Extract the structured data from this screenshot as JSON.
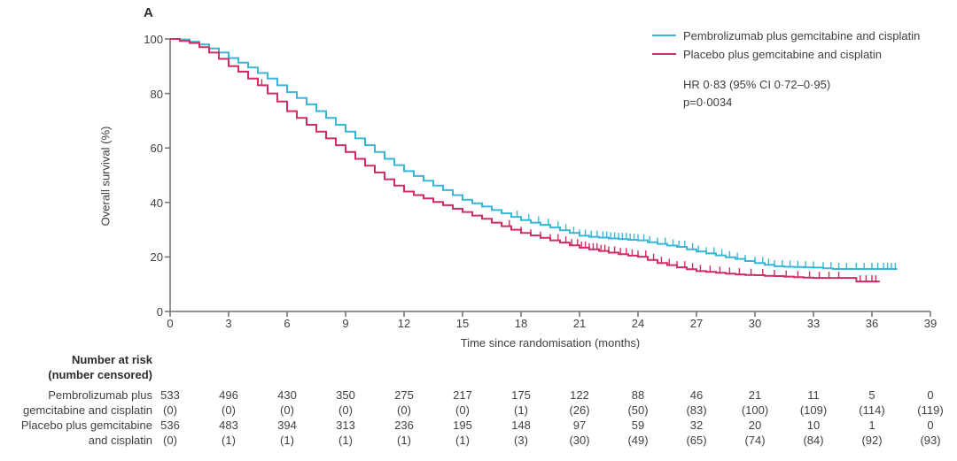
{
  "figure": {
    "panel_label": "A"
  },
  "colors": {
    "axis": "#6e6e6e",
    "text": "#3f3f3f"
  },
  "chart_data": {
    "type": "line",
    "subtype": "kaplan-meier",
    "title": "",
    "xlabel": "Time since randomisation (months)",
    "ylabel": "Overall survival (%)",
    "xlim": [
      0,
      39
    ],
    "ylim": [
      0,
      100
    ],
    "x_ticks": [
      0,
      3,
      6,
      9,
      12,
      15,
      18,
      21,
      24,
      27,
      30,
      33,
      36,
      39
    ],
    "y_ticks": [
      0,
      20,
      40,
      60,
      80,
      100
    ],
    "grid": false,
    "legend_position": "top-right",
    "annotation": {
      "line1": "HR 0·83 (95% CI 0·72–0·95)",
      "line2": "p=0·0034"
    },
    "series": [
      {
        "name": "Pembrolizumab plus gemcitabine and cisplatin",
        "color": "#38b6d8",
        "points": [
          [
            0,
            100
          ],
          [
            0.5,
            99.8
          ],
          [
            1,
            99
          ],
          [
            1.5,
            98
          ],
          [
            2,
            96.5
          ],
          [
            2.5,
            95
          ],
          [
            3,
            93
          ],
          [
            3.5,
            91.3
          ],
          [
            4,
            89.5
          ],
          [
            4.5,
            87.5
          ],
          [
            5,
            85.5
          ],
          [
            5.5,
            83
          ],
          [
            6,
            80.5
          ],
          [
            6.5,
            78.3
          ],
          [
            7,
            76
          ],
          [
            7.5,
            73.5
          ],
          [
            8,
            71
          ],
          [
            8.5,
            68.5
          ],
          [
            9,
            66
          ],
          [
            9.5,
            63.5
          ],
          [
            10,
            61
          ],
          [
            10.5,
            58.5
          ],
          [
            11,
            56
          ],
          [
            11.5,
            53.7
          ],
          [
            12,
            51.5
          ],
          [
            12.5,
            49.7
          ],
          [
            13,
            48
          ],
          [
            13.5,
            46.2
          ],
          [
            14,
            44.5
          ],
          [
            14.5,
            42.7
          ],
          [
            15,
            41
          ],
          [
            15.5,
            39.7
          ],
          [
            16,
            38.5
          ],
          [
            16.5,
            37.2
          ],
          [
            17,
            36
          ],
          [
            17.5,
            34.7
          ],
          [
            18,
            33.5
          ],
          [
            18.5,
            32.6
          ],
          [
            19,
            31.8
          ],
          [
            19.5,
            30.8
          ],
          [
            20,
            29.8
          ],
          [
            20.5,
            28.8
          ],
          [
            21,
            27.8
          ],
          [
            21.5,
            27.4
          ],
          [
            22,
            27.1
          ],
          [
            22.5,
            26.8
          ],
          [
            23,
            26.6
          ],
          [
            23.5,
            26.3
          ],
          [
            24,
            26.1
          ],
          [
            24.5,
            25.4
          ],
          [
            25,
            24.8
          ],
          [
            25.5,
            24.2
          ],
          [
            26,
            23.7
          ],
          [
            26.5,
            22.8
          ],
          [
            27,
            22
          ],
          [
            27.5,
            21.3
          ],
          [
            28,
            20.6
          ],
          [
            28.5,
            19.9
          ],
          [
            29,
            19.3
          ],
          [
            29.5,
            18.5
          ],
          [
            30,
            17.8
          ],
          [
            30.5,
            17.1
          ],
          [
            31,
            16.6
          ],
          [
            31.5,
            16.4
          ],
          [
            32,
            16.3
          ],
          [
            32.5,
            16.2
          ],
          [
            33,
            16.1
          ],
          [
            33.5,
            15.8
          ],
          [
            34,
            15.6
          ],
          [
            35,
            15.6
          ],
          [
            36,
            15.6
          ],
          [
            37.3,
            15.6
          ]
        ],
        "censor_marks_months": [
          17.8,
          18.4,
          18.9,
          19.4,
          19.9,
          20.3,
          20.7,
          21.0,
          21.3,
          21.6,
          21.9,
          22.2,
          22.4,
          22.6,
          22.8,
          23.0,
          23.2,
          23.4,
          23.6,
          23.8,
          24.0,
          24.3,
          24.6,
          25.0,
          25.4,
          25.8,
          26.1,
          26.4,
          26.8,
          27.1,
          27.5,
          27.9,
          28.3,
          28.7,
          29.1,
          29.5,
          30.0,
          30.4,
          30.7,
          31.0,
          31.4,
          31.8,
          32.2,
          32.6,
          33.0,
          33.5,
          33.9,
          34.3,
          34.7,
          35.2,
          35.6,
          36.0,
          36.3,
          36.6,
          36.8,
          37.0,
          37.2
        ]
      },
      {
        "name": "Placebo plus gemcitabine and cisplatin",
        "color": "#d12d5f",
        "points": [
          [
            0,
            100
          ],
          [
            0.5,
            99.3
          ],
          [
            1,
            98.5
          ],
          [
            1.5,
            97
          ],
          [
            2,
            95
          ],
          [
            2.5,
            92.7
          ],
          [
            3,
            90
          ],
          [
            3.5,
            88
          ],
          [
            4,
            85.5
          ],
          [
            4.5,
            83
          ],
          [
            5,
            80
          ],
          [
            5.5,
            77
          ],
          [
            6,
            73.5
          ],
          [
            6.5,
            71
          ],
          [
            7,
            68.5
          ],
          [
            7.5,
            66
          ],
          [
            8,
            63.5
          ],
          [
            8.5,
            61
          ],
          [
            9,
            58.5
          ],
          [
            9.5,
            56
          ],
          [
            10,
            53.5
          ],
          [
            10.5,
            51
          ],
          [
            11,
            48.5
          ],
          [
            11.5,
            46.2
          ],
          [
            12,
            44
          ],
          [
            12.5,
            42.7
          ],
          [
            13,
            41.5
          ],
          [
            13.5,
            40.2
          ],
          [
            14,
            39
          ],
          [
            14.5,
            37.7
          ],
          [
            15,
            36.5
          ],
          [
            15.5,
            35.2
          ],
          [
            16,
            34
          ],
          [
            16.5,
            32.6
          ],
          [
            17,
            31.3
          ],
          [
            17.5,
            30
          ],
          [
            18,
            28.8
          ],
          [
            18.5,
            27.9
          ],
          [
            19,
            27
          ],
          [
            19.5,
            26.1
          ],
          [
            20,
            25.3
          ],
          [
            20.5,
            24.3
          ],
          [
            21,
            23.4
          ],
          [
            21.5,
            22.8
          ],
          [
            22,
            22.2
          ],
          [
            22.5,
            21.6
          ],
          [
            23,
            21
          ],
          [
            23.5,
            20.5
          ],
          [
            24,
            20.1
          ],
          [
            24.5,
            18.9
          ],
          [
            25,
            17.8
          ],
          [
            25.5,
            17
          ],
          [
            26,
            16.2
          ],
          [
            26.5,
            15.5
          ],
          [
            27,
            14.8
          ],
          [
            27.5,
            14.5
          ],
          [
            28,
            14.2
          ],
          [
            28.5,
            13.9
          ],
          [
            29,
            13.6
          ],
          [
            29.5,
            13.4
          ],
          [
            30,
            13.3
          ],
          [
            30.5,
            13.1
          ],
          [
            31,
            13
          ],
          [
            31.5,
            12.8
          ],
          [
            32,
            12.6
          ],
          [
            32.5,
            12.4
          ],
          [
            33,
            12.3
          ],
          [
            34,
            12.3
          ],
          [
            35.1,
            12.3
          ],
          [
            35.2,
            11
          ],
          [
            36.4,
            11
          ]
        ],
        "censor_marks_months": [
          4.7,
          17.4,
          18.0,
          18.5,
          19.0,
          19.5,
          19.9,
          20.3,
          20.6,
          20.9,
          21.1,
          21.3,
          21.5,
          21.7,
          21.9,
          22.1,
          22.3,
          22.5,
          22.8,
          23.1,
          23.4,
          23.7,
          24.0,
          24.4,
          24.8,
          25.2,
          25.6,
          26.0,
          26.4,
          26.8,
          27.2,
          27.7,
          28.2,
          28.7,
          29.2,
          29.8,
          30.4,
          31.0,
          31.6,
          32.2,
          32.8,
          33.3,
          33.8,
          34.3,
          35.4,
          35.7,
          36.0,
          36.2
        ]
      }
    ]
  },
  "risk_table": {
    "header_line1": "Number at risk",
    "header_line2": "(number censored)",
    "time_points": [
      0,
      3,
      6,
      9,
      12,
      15,
      18,
      21,
      24,
      27,
      30,
      33,
      36,
      39
    ],
    "rows": [
      {
        "label_line1": "Pembrolizumab plus",
        "label_line2": "gemcitabine and cisplatin",
        "at_risk": [
          533,
          496,
          430,
          350,
          275,
          217,
          175,
          122,
          88,
          46,
          21,
          11,
          5,
          0
        ],
        "censored": [
          0,
          0,
          0,
          0,
          0,
          0,
          1,
          26,
          50,
          83,
          100,
          109,
          114,
          119
        ]
      },
      {
        "label_line1": "Placebo plus gemcitabine",
        "label_line2": "and cisplatin",
        "at_risk": [
          536,
          483,
          394,
          313,
          236,
          195,
          148,
          97,
          59,
          32,
          20,
          10,
          1,
          0
        ],
        "censored": [
          0,
          1,
          1,
          1,
          1,
          1,
          3,
          30,
          49,
          65,
          74,
          84,
          92,
          93
        ]
      }
    ]
  }
}
